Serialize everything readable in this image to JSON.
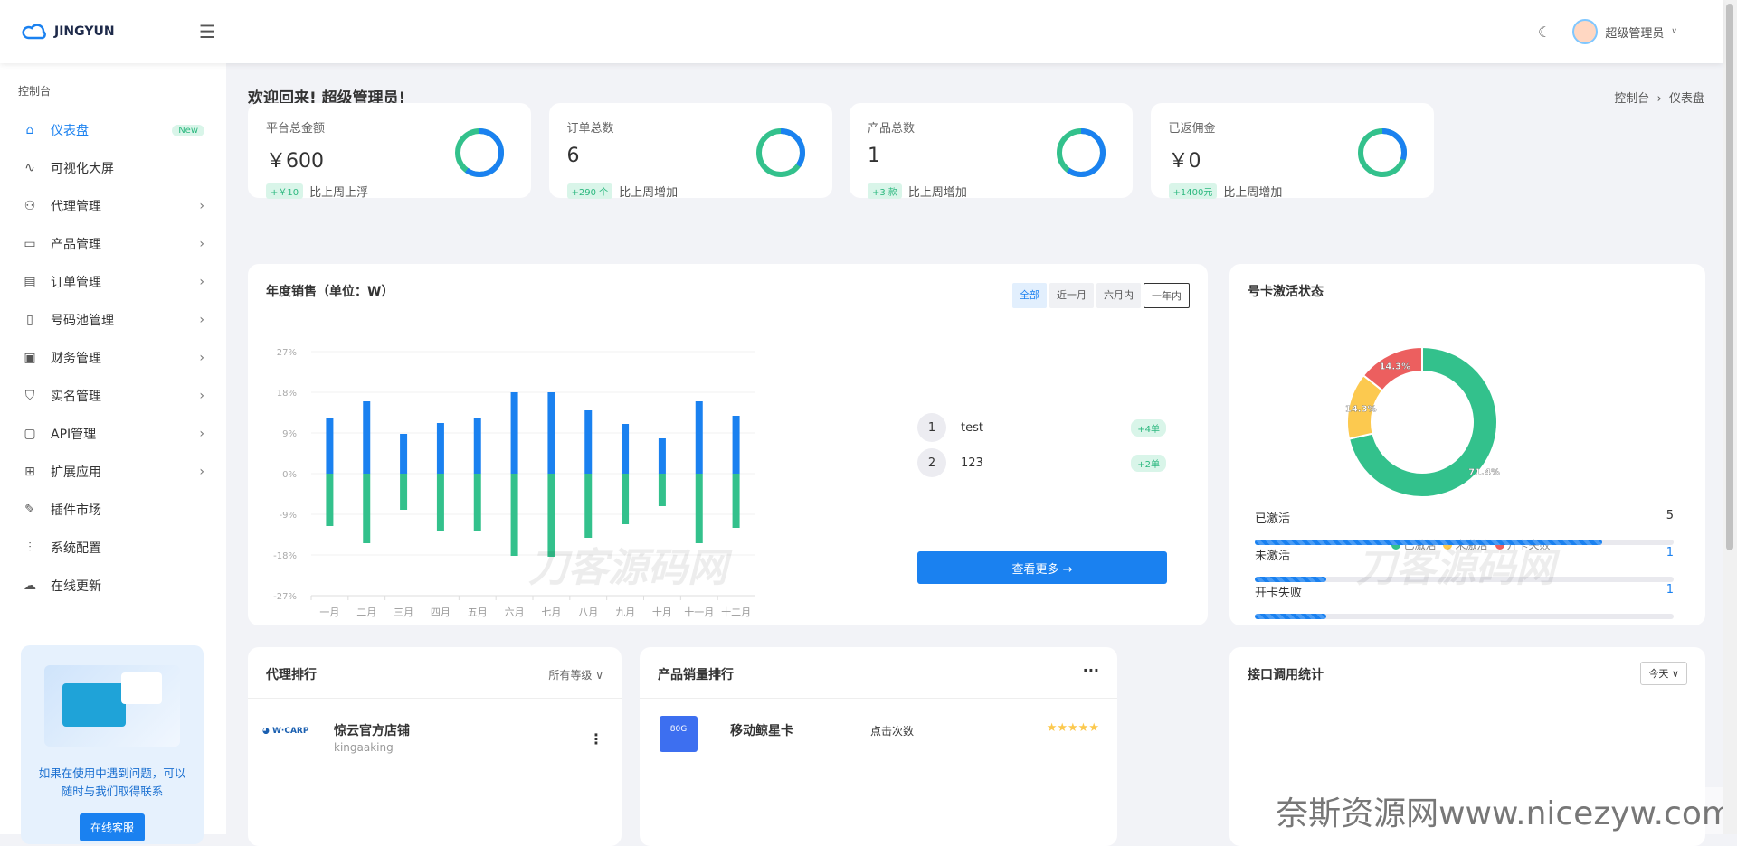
{
  "header": {
    "logo_text": "JINGYUN",
    "user_name": "超级管理员"
  },
  "sidebar": {
    "section": "控制台",
    "items": [
      {
        "label": "仪表盘",
        "icon": "home-icon",
        "badge": "New"
      },
      {
        "label": "可视化大屏",
        "icon": "pulse-icon"
      },
      {
        "label": "代理管理",
        "icon": "users-icon",
        "arrow": true
      },
      {
        "label": "产品管理",
        "icon": "archive-icon",
        "arrow": true
      },
      {
        "label": "订单管理",
        "icon": "document-icon",
        "arrow": true
      },
      {
        "label": "号码池管理",
        "icon": "phone-icon",
        "arrow": true
      },
      {
        "label": "财务管理",
        "icon": "briefcase-icon",
        "arrow": true
      },
      {
        "label": "实名管理",
        "icon": "shield-icon",
        "arrow": true
      },
      {
        "label": "API管理",
        "icon": "monitor-icon",
        "arrow": true
      },
      {
        "label": "扩展应用",
        "icon": "grid-icon",
        "arrow": true
      },
      {
        "label": "插件市场",
        "icon": "wrench-icon"
      },
      {
        "label": "系统配置",
        "icon": "sliders-icon"
      },
      {
        "label": "在线更新",
        "icon": "cloud-icon"
      }
    ],
    "help": {
      "text": "如果在使用中遇到问题，可以随时与我们取得联系",
      "button": "在线客服"
    }
  },
  "page": {
    "welcome": "欢迎回来! 超级管理员!",
    "breadcrumb": [
      "控制台",
      "仪表盘"
    ]
  },
  "stats": [
    {
      "label": "平台总金额",
      "value": "￥600",
      "delta": "+￥10",
      "compare": "比上周上浮",
      "ring_fraction": 0.6
    },
    {
      "label": "订单总数",
      "value": "6",
      "delta": "+290 个",
      "compare": "比上周增加",
      "ring_fraction": 0.35
    },
    {
      "label": "产品总数",
      "value": "1",
      "delta": "+3 款",
      "compare": "比上周增加",
      "ring_fraction": 0.6
    },
    {
      "label": "已返佣金",
      "value": "￥0",
      "delta": "+1400元",
      "compare": "比上周增加",
      "ring_fraction": 0.3
    }
  ],
  "colors": {
    "blue": "#1a81f0",
    "green": "#33c18c",
    "yellow": "#fcc94f",
    "red": "#ec5f5f"
  },
  "sales": {
    "title": "年度销售（单位：W）",
    "filters": [
      "全部",
      "近一月",
      "六月内",
      "一年内"
    ],
    "ranking": [
      {
        "no": "1",
        "name": "test",
        "tag": "+4单"
      },
      {
        "no": "2",
        "name": "123",
        "tag": "+2单"
      }
    ],
    "more": "查看更多 →"
  },
  "chart_data": [
    {
      "type": "bar",
      "categories": [
        "一月",
        "二月",
        "三月",
        "四月",
        "五月",
        "六月",
        "七月",
        "八月",
        "九月",
        "十月",
        "十一月",
        "十二月"
      ],
      "series": [
        {
          "values": [
            12.2,
            16,
            8.8,
            11.2,
            12.4,
            18,
            18,
            14,
            11,
            7.8,
            16,
            12.8
          ],
          "color": "#1a81f0"
        },
        {
          "values": [
            -11.6,
            -15.4,
            -8,
            -12.6,
            -12.6,
            -18.2,
            -18.4,
            -14.2,
            -11.2,
            -7.2,
            -15.4,
            -12
          ]
        }
      ],
      "yticks": [
        "27%",
        "18%",
        "9%",
        "0%",
        "-9%",
        "-18%",
        "-27%"
      ],
      "ylim": [
        -27,
        27
      ],
      "grid": true
    },
    {
      "type": "pie",
      "title": "号卡激活状态",
      "labels": [
        "已激活",
        "未激活",
        "开卡失败"
      ],
      "values": [
        71.4,
        14.3,
        14.3
      ],
      "data_labels": [
        "71.4%",
        "14.3%",
        "14.3%"
      ]
    }
  ],
  "activation": {
    "rows": [
      {
        "label": "已激活",
        "count": "5",
        "fraction": 0.83
      },
      {
        "label": "未激活",
        "count": "1",
        "fraction": 0.17
      },
      {
        "label": "开卡失败",
        "count": "1",
        "fraction": 0.17
      }
    ]
  },
  "agents": {
    "title": "代理排行",
    "filter": "所有等级",
    "first": {
      "name": "惊云官方店铺",
      "sub": "kingaaking"
    }
  },
  "products": {
    "title": "产品销量排行",
    "first": {
      "name": "移动鲸星卡",
      "metric": "点击次数",
      "image_text": "80G"
    }
  },
  "api": {
    "title": "接口调用统计",
    "filter": "今天"
  },
  "watermarks": {
    "center": "刀客源码网",
    "bottom": "奈斯资源网www.nicezyw.com"
  }
}
